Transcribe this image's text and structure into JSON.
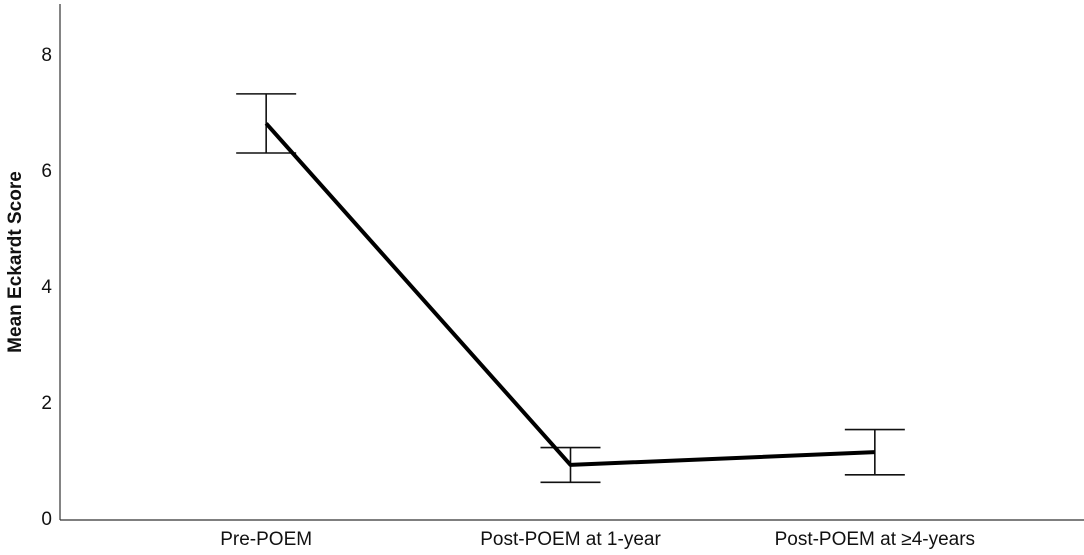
{
  "chart_data": {
    "type": "line",
    "y_label": "Mean Eckardt Score",
    "categories": [
      "Pre-POEM",
      "Post-POEM at 1-year",
      "Post-POEM at ≥4-years"
    ],
    "series": [
      {
        "color": "#000000",
        "values": [
          6.84,
          0.95,
          1.17
        ],
        "errors": [
          0.51,
          0.3,
          0.39
        ]
      }
    ],
    "ylim": [
      0,
      8.9
    ],
    "yticks": [
      0,
      2,
      4,
      6,
      8
    ],
    "grid": false
  }
}
